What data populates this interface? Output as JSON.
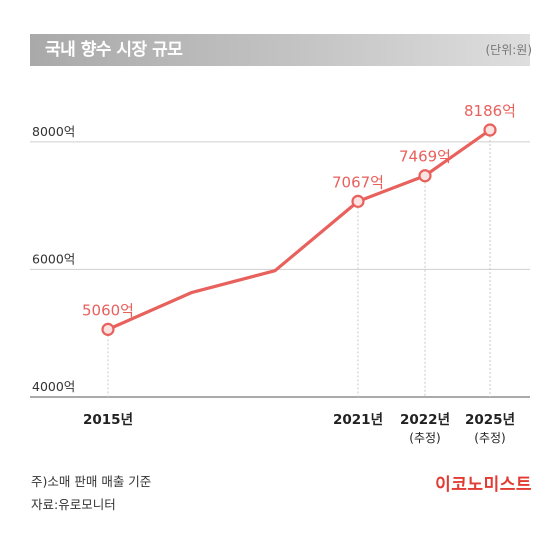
{
  "header": {
    "title": "국내 향수 시장 규모",
    "unit": "(단위:원)"
  },
  "footer": {
    "note": "주)소매 판매 매출 기준",
    "source": "자료:유로모니터",
    "brand": "이코노미스트"
  },
  "colors": {
    "line": "#e8615d",
    "label": "#e8615d",
    "brand": "#e23b32"
  },
  "chart_data": {
    "type": "line",
    "title": "국내 향수 시장 규모",
    "ylabel": "",
    "xlabel": "",
    "ylim": [
      4000,
      8186
    ],
    "yticks": [
      {
        "value": 4000,
        "label": "4000억"
      },
      {
        "value": 6000,
        "label": "6000억"
      },
      {
        "value": 8000,
        "label": "8000억"
      }
    ],
    "grid": true,
    "series": [
      {
        "points": [
          {
            "x": 2015,
            "y": 5060,
            "label": "5060억",
            "marker": true
          },
          {
            "x": 2016,
            "y": 5640,
            "label": "",
            "marker": false
          },
          {
            "x": 2017,
            "y": 5980,
            "label": "",
            "marker": false
          },
          {
            "x": 2021,
            "y": 7067,
            "label": "7067억",
            "marker": true
          },
          {
            "x": 2022,
            "y": 7469,
            "label": "7469억",
            "marker": true
          },
          {
            "x": 2025,
            "y": 8186,
            "label": "8186억",
            "marker": true
          }
        ]
      }
    ],
    "xticks": [
      {
        "x": 2015,
        "label": "2015년",
        "sub": ""
      },
      {
        "x": 2021,
        "label": "2021년",
        "sub": ""
      },
      {
        "x": 2022,
        "label": "2022년",
        "sub": "(추정)"
      },
      {
        "x": 2025,
        "label": "2025년",
        "sub": "(추정)"
      }
    ]
  }
}
